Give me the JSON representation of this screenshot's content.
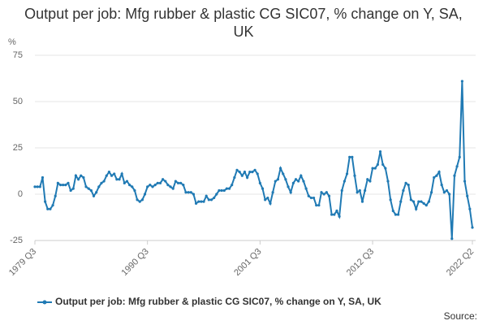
{
  "chart_data": {
    "type": "line",
    "title": "Output per job: Mfg rubber & plastic CG SIC07, % change on Y, SA, UK",
    "y_label": "%",
    "source": "Source:",
    "categories": [
      "1979 Q3",
      null,
      null,
      null,
      null,
      null,
      null,
      null,
      null,
      null,
      null,
      null,
      null,
      null,
      null,
      null,
      null,
      null,
      null,
      null,
      null,
      null,
      null,
      null,
      null,
      null,
      null,
      null,
      null,
      null,
      null,
      null,
      null,
      null,
      null,
      null,
      null,
      null,
      null,
      null,
      null,
      null,
      null,
      null,
      "1990 Q3",
      null,
      null,
      null,
      null,
      null,
      null,
      null,
      null,
      null,
      null,
      null,
      null,
      null,
      null,
      null,
      null,
      null,
      null,
      null,
      null,
      null,
      null,
      null,
      null,
      null,
      null,
      null,
      null,
      null,
      null,
      null,
      null,
      null,
      null,
      null,
      null,
      null,
      null,
      null,
      null,
      null,
      null,
      null,
      "2001 Q3",
      null,
      null,
      null,
      null,
      null,
      null,
      null,
      null,
      null,
      null,
      null,
      null,
      null,
      null,
      null,
      null,
      null,
      null,
      null,
      null,
      null,
      null,
      null,
      null,
      null,
      null,
      null,
      null,
      null,
      null,
      null,
      null,
      null,
      null,
      null,
      null,
      null,
      null,
      null,
      null,
      null,
      null,
      null,
      "2012 Q3",
      null,
      null,
      null,
      null,
      null,
      null,
      null,
      null,
      null,
      null,
      null,
      null,
      null,
      null,
      null,
      null,
      null,
      null,
      null,
      null,
      null,
      null,
      null,
      null,
      null,
      null,
      null,
      null,
      null,
      null,
      null,
      null,
      null,
      null,
      null,
      null,
      null,
      null,
      "2022 Q2"
    ],
    "series": [
      {
        "name": "Output per job: Mfg rubber & plastic CG SIC07, % change on Y, SA, UK",
        "color": "#207ab4",
        "values": [
          4,
          4,
          4,
          9,
          -4,
          -8,
          -8,
          -6,
          -1,
          6,
          5,
          5,
          5,
          6,
          2,
          3,
          10,
          8,
          10,
          9,
          4,
          3,
          2,
          -1,
          1,
          4,
          6,
          7,
          10,
          12,
          10,
          11,
          8,
          8,
          11,
          6,
          7,
          5,
          4,
          2,
          -3,
          -4,
          -3,
          0,
          4,
          5,
          4,
          5,
          6,
          6,
          8,
          7,
          5,
          4,
          3,
          7,
          6,
          6,
          5,
          1,
          1,
          1,
          0,
          -5,
          -4,
          -4,
          -4,
          -1,
          -3,
          -3,
          -2,
          0,
          2,
          2,
          2,
          3,
          3,
          5,
          9,
          13,
          12,
          10,
          12,
          9,
          12,
          12,
          13,
          11,
          6,
          3,
          -3,
          -2,
          -5,
          1,
          7,
          8,
          14,
          11,
          8,
          4,
          1,
          6,
          8,
          7,
          10,
          7,
          3,
          -1,
          -2,
          -2,
          -6,
          -6,
          1,
          0,
          1,
          -1,
          -11,
          -11,
          -9,
          -12,
          2,
          7,
          11,
          20,
          20,
          10,
          1,
          2,
          -4,
          2,
          8,
          7,
          14,
          14,
          16,
          23,
          16,
          14,
          7,
          -3,
          -9,
          -11,
          -11,
          -4,
          2,
          6,
          5,
          -3,
          -4,
          -8,
          -4,
          -4,
          -5,
          -6,
          -4,
          1,
          9,
          10,
          12,
          5,
          1,
          2,
          0,
          -24,
          10,
          15,
          20,
          61,
          7,
          -1,
          -8,
          -18
        ]
      }
    ],
    "ylim": [
      -25,
      75
    ],
    "yticks": [
      -25,
      0,
      25,
      50,
      75
    ],
    "grid": true,
    "legend": "bottom"
  }
}
